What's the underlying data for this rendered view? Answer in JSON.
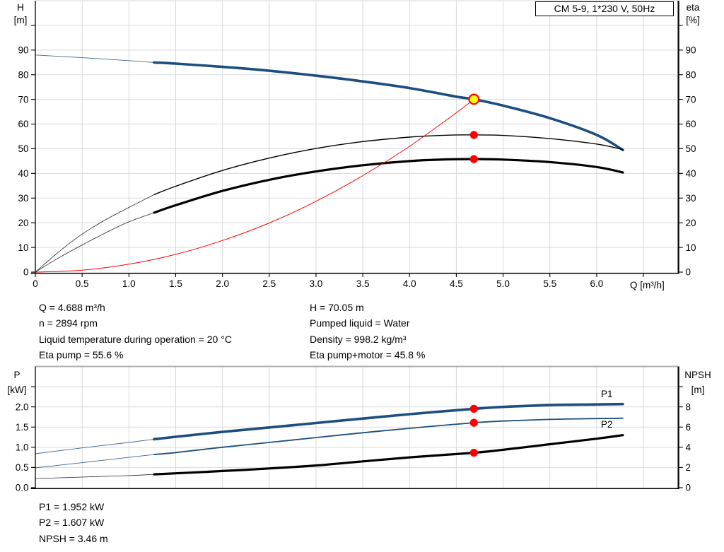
{
  "title_box": {
    "label": "CM 5-9, 1*230 V, 50Hz"
  },
  "colors": {
    "curve_blue": "#1c4e7f",
    "curve_black": "#000000",
    "curve_red": "#ff0000",
    "duty_fill": "#ffff00",
    "grid": "#d9d9d9",
    "grid_strong": "#b0b0b0",
    "axis": "#000000"
  },
  "operating_info": {
    "left": [
      "Q = 4.688 m³/h",
      "n = 2894 rpm",
      "Liquid temperature during operation = 20 °C",
      "Eta pump = 55.6 %"
    ],
    "right": [
      "H = 70.05 m",
      "Pumped liquid = Water",
      "Density = 998.2 kg/m³",
      "Eta pump+motor = 45.8 %"
    ]
  },
  "power_info": [
    "P1 = 1.952 kW",
    "P2 = 1.607 kW",
    "NPSH = 3.46 m"
  ],
  "chart_data": [
    {
      "type": "line",
      "name": "head-efficiency-chart",
      "x": {
        "label": "Q [m³/h]",
        "max": 6.87,
        "minor_step": 0.5,
        "tick_values": [
          0,
          0.5,
          1,
          1.5,
          2,
          2.5,
          3,
          3.5,
          4,
          4.5,
          5,
          5.5,
          6
        ],
        "tick_labels": [
          "0",
          "0.5",
          "1.0",
          "1.5",
          "2.0",
          "2.5",
          "3.0",
          "3.5",
          "4.0",
          "4.5",
          "5.0",
          "5.5",
          "6.0"
        ]
      },
      "y_left": {
        "label": [
          "H",
          "[m]"
        ],
        "max": 110,
        "grid_step": 10,
        "tick_values": [
          0,
          10,
          20,
          30,
          40,
          50,
          60,
          70,
          80,
          90
        ],
        "tick_labels": [
          "0",
          "10",
          "20",
          "30",
          "40",
          "50",
          "60",
          "70",
          "80",
          "90"
        ]
      },
      "y_right": {
        "label": [
          "eta",
          "[%]"
        ],
        "max": 110,
        "grid_step": 10,
        "tick_values": [
          0,
          10,
          20,
          30,
          40,
          50,
          60,
          70,
          80,
          90
        ],
        "tick_labels": [
          "0",
          "10",
          "20",
          "30",
          "40",
          "50",
          "60",
          "70",
          "80",
          "90"
        ]
      },
      "series": [
        {
          "name": "head-curve",
          "axis": "left",
          "color": "#1c4e7f",
          "width": 3.6,
          "thin_width": 0.9,
          "thin_until": 1.27,
          "points": [
            [
              0,
              88
            ],
            [
              0.5,
              86.9
            ],
            [
              1,
              85.7
            ],
            [
              1.27,
              84.95
            ],
            [
              1.5,
              84.5
            ],
            [
              2,
              83.2
            ],
            [
              2.5,
              81.6
            ],
            [
              3,
              79.6
            ],
            [
              3.5,
              77.3
            ],
            [
              4,
              74.6
            ],
            [
              4.5,
              71.1
            ],
            [
              4.688,
              70.05
            ],
            [
              5,
              67.5
            ],
            [
              5.5,
              62.4
            ],
            [
              6,
              55.6
            ],
            [
              6.28,
              49.5
            ]
          ]
        },
        {
          "name": "eta-pump-curve",
          "axis": "right",
          "color": "#000000",
          "width": 1.4,
          "thin_width": 0.8,
          "thin_until": 1.27,
          "points": [
            [
              0,
              0
            ],
            [
              0.25,
              8.2
            ],
            [
              0.5,
              15.4
            ],
            [
              0.75,
              21.2
            ],
            [
              1,
              26.2
            ],
            [
              1.27,
              31.4
            ],
            [
              1.5,
              34.8
            ],
            [
              2,
              41.2
            ],
            [
              2.5,
              46.2
            ],
            [
              3,
              50.1
            ],
            [
              3.5,
              52.9
            ],
            [
              4,
              54.7
            ],
            [
              4.4,
              55.5
            ],
            [
              4.688,
              55.6
            ],
            [
              5,
              55.4
            ],
            [
              5.5,
              54.1
            ],
            [
              6,
              51.9
            ],
            [
              6.28,
              49.7
            ]
          ]
        },
        {
          "name": "eta-pump-motor-curve",
          "axis": "right",
          "color": "#000000",
          "width": 3.2,
          "thin_width": 0.8,
          "thin_until": 1.27,
          "points": [
            [
              0,
              0
            ],
            [
              0.25,
              5.8
            ],
            [
              0.5,
              11
            ],
            [
              0.75,
              15.9
            ],
            [
              1,
              20.4
            ],
            [
              1.27,
              24.1
            ],
            [
              1.5,
              27.1
            ],
            [
              2,
              32.9
            ],
            [
              2.5,
              37.4
            ],
            [
              3,
              40.8
            ],
            [
              3.5,
              43.3
            ],
            [
              4,
              45
            ],
            [
              4.4,
              45.7
            ],
            [
              4.688,
              45.8
            ],
            [
              5,
              45.6
            ],
            [
              5.5,
              44.6
            ],
            [
              6,
              42.6
            ],
            [
              6.28,
              40.4
            ]
          ]
        },
        {
          "name": "system-curve",
          "axis": "left",
          "color": "#ff0000",
          "width": 1,
          "points": [
            [
              0,
              0
            ],
            [
              0.5,
              0.8
            ],
            [
              1,
              3.2
            ],
            [
              1.5,
              7.2
            ],
            [
              2,
              12.8
            ],
            [
              2.5,
              19.9
            ],
            [
              3,
              28.7
            ],
            [
              3.5,
              39.1
            ],
            [
              4,
              51
            ],
            [
              4.5,
              64.6
            ],
            [
              4.688,
              70.05
            ]
          ]
        }
      ],
      "markers": [
        {
          "name": "duty-point-marker",
          "x": 4.688,
          "y": 70.05,
          "axis": "left",
          "fill": "#ffff00",
          "stroke": "#ff0000",
          "r": 6.8
        },
        {
          "name": "eta-pump-point",
          "x": 4.688,
          "y": 55.6,
          "axis": "right",
          "fill": "#ff0000",
          "r": 5.6
        },
        {
          "name": "eta-pump-motor-point",
          "x": 4.688,
          "y": 45.8,
          "axis": "right",
          "fill": "#ff0000",
          "r": 5.6
        }
      ]
    },
    {
      "type": "line",
      "name": "power-npsh-chart",
      "x": {
        "label": "",
        "max": 6.87,
        "minor_step": 0.5,
        "tick_values": [],
        "tick_labels": []
      },
      "y_left": {
        "label": [
          "P",
          "[kW]"
        ],
        "max": 3,
        "grid_step": 0.5,
        "tick_values": [
          0,
          0.5,
          1,
          1.5,
          2
        ],
        "tick_labels": [
          "0.0",
          "0.5",
          "1.0",
          "1.5",
          "2.0"
        ]
      },
      "y_right": {
        "label": [
          "NPSH",
          "[m]"
        ],
        "max": 12,
        "grid_step": 2,
        "tick_values": [
          0,
          2,
          4,
          6,
          8
        ],
        "tick_labels": [
          "0",
          "2",
          "4",
          "6",
          "8"
        ]
      },
      "series": [
        {
          "name": "p1-curve",
          "label": "P1",
          "axis": "left",
          "color": "#1c4e7f",
          "width": 3.6,
          "thin_width": 0.9,
          "thin_until": 1.27,
          "points": [
            [
              0,
              0.84
            ],
            [
              0.5,
              0.985
            ],
            [
              1,
              1.12
            ],
            [
              1.27,
              1.2
            ],
            [
              1.5,
              1.26
            ],
            [
              2,
              1.38
            ],
            [
              2.5,
              1.49
            ],
            [
              3,
              1.6
            ],
            [
              3.5,
              1.71
            ],
            [
              4,
              1.82
            ],
            [
              4.688,
              1.952
            ],
            [
              5,
              2.0
            ],
            [
              5.5,
              2.045
            ],
            [
              6,
              2.06
            ],
            [
              6.28,
              2.07
            ]
          ]
        },
        {
          "name": "p2-curve",
          "label": "P2",
          "axis": "left",
          "color": "#1c4e7f",
          "width": 1.8,
          "thin_width": 0.9,
          "thin_until": 1.27,
          "points": [
            [
              0,
              0.49
            ],
            [
              0.5,
              0.62
            ],
            [
              1,
              0.75
            ],
            [
              1.27,
              0.82
            ],
            [
              1.5,
              0.87
            ],
            [
              2,
              1.0
            ],
            [
              2.5,
              1.12
            ],
            [
              3,
              1.24
            ],
            [
              3.5,
              1.36
            ],
            [
              4,
              1.47
            ],
            [
              4.688,
              1.607
            ],
            [
              5,
              1.65
            ],
            [
              5.5,
              1.69
            ],
            [
              6,
              1.71
            ],
            [
              6.28,
              1.72
            ]
          ]
        },
        {
          "name": "npsh-curve",
          "axis": "right",
          "color": "#000000",
          "width": 3.2,
          "thin_width": 0.8,
          "thin_until": 1.27,
          "points": [
            [
              0,
              0.9
            ],
            [
              0.5,
              1.05
            ],
            [
              1,
              1.2
            ],
            [
              1.27,
              1.32
            ],
            [
              1.5,
              1.42
            ],
            [
              2,
              1.65
            ],
            [
              2.5,
              1.9
            ],
            [
              3,
              2.2
            ],
            [
              3.5,
              2.6
            ],
            [
              4,
              3.0
            ],
            [
              4.688,
              3.46
            ],
            [
              5,
              3.75
            ],
            [
              5.5,
              4.3
            ],
            [
              6,
              4.85
            ],
            [
              6.28,
              5.2
            ]
          ]
        }
      ],
      "markers": [
        {
          "name": "p1-point",
          "x": 4.688,
          "y": 1.952,
          "axis": "left",
          "fill": "#ff0000",
          "r": 5.6
        },
        {
          "name": "p2-point",
          "x": 4.688,
          "y": 1.607,
          "axis": "left",
          "fill": "#ff0000",
          "r": 5.6
        },
        {
          "name": "npsh-point",
          "x": 4.688,
          "y": 3.46,
          "axis": "right",
          "fill": "#ff0000",
          "r": 5.6
        }
      ]
    }
  ]
}
